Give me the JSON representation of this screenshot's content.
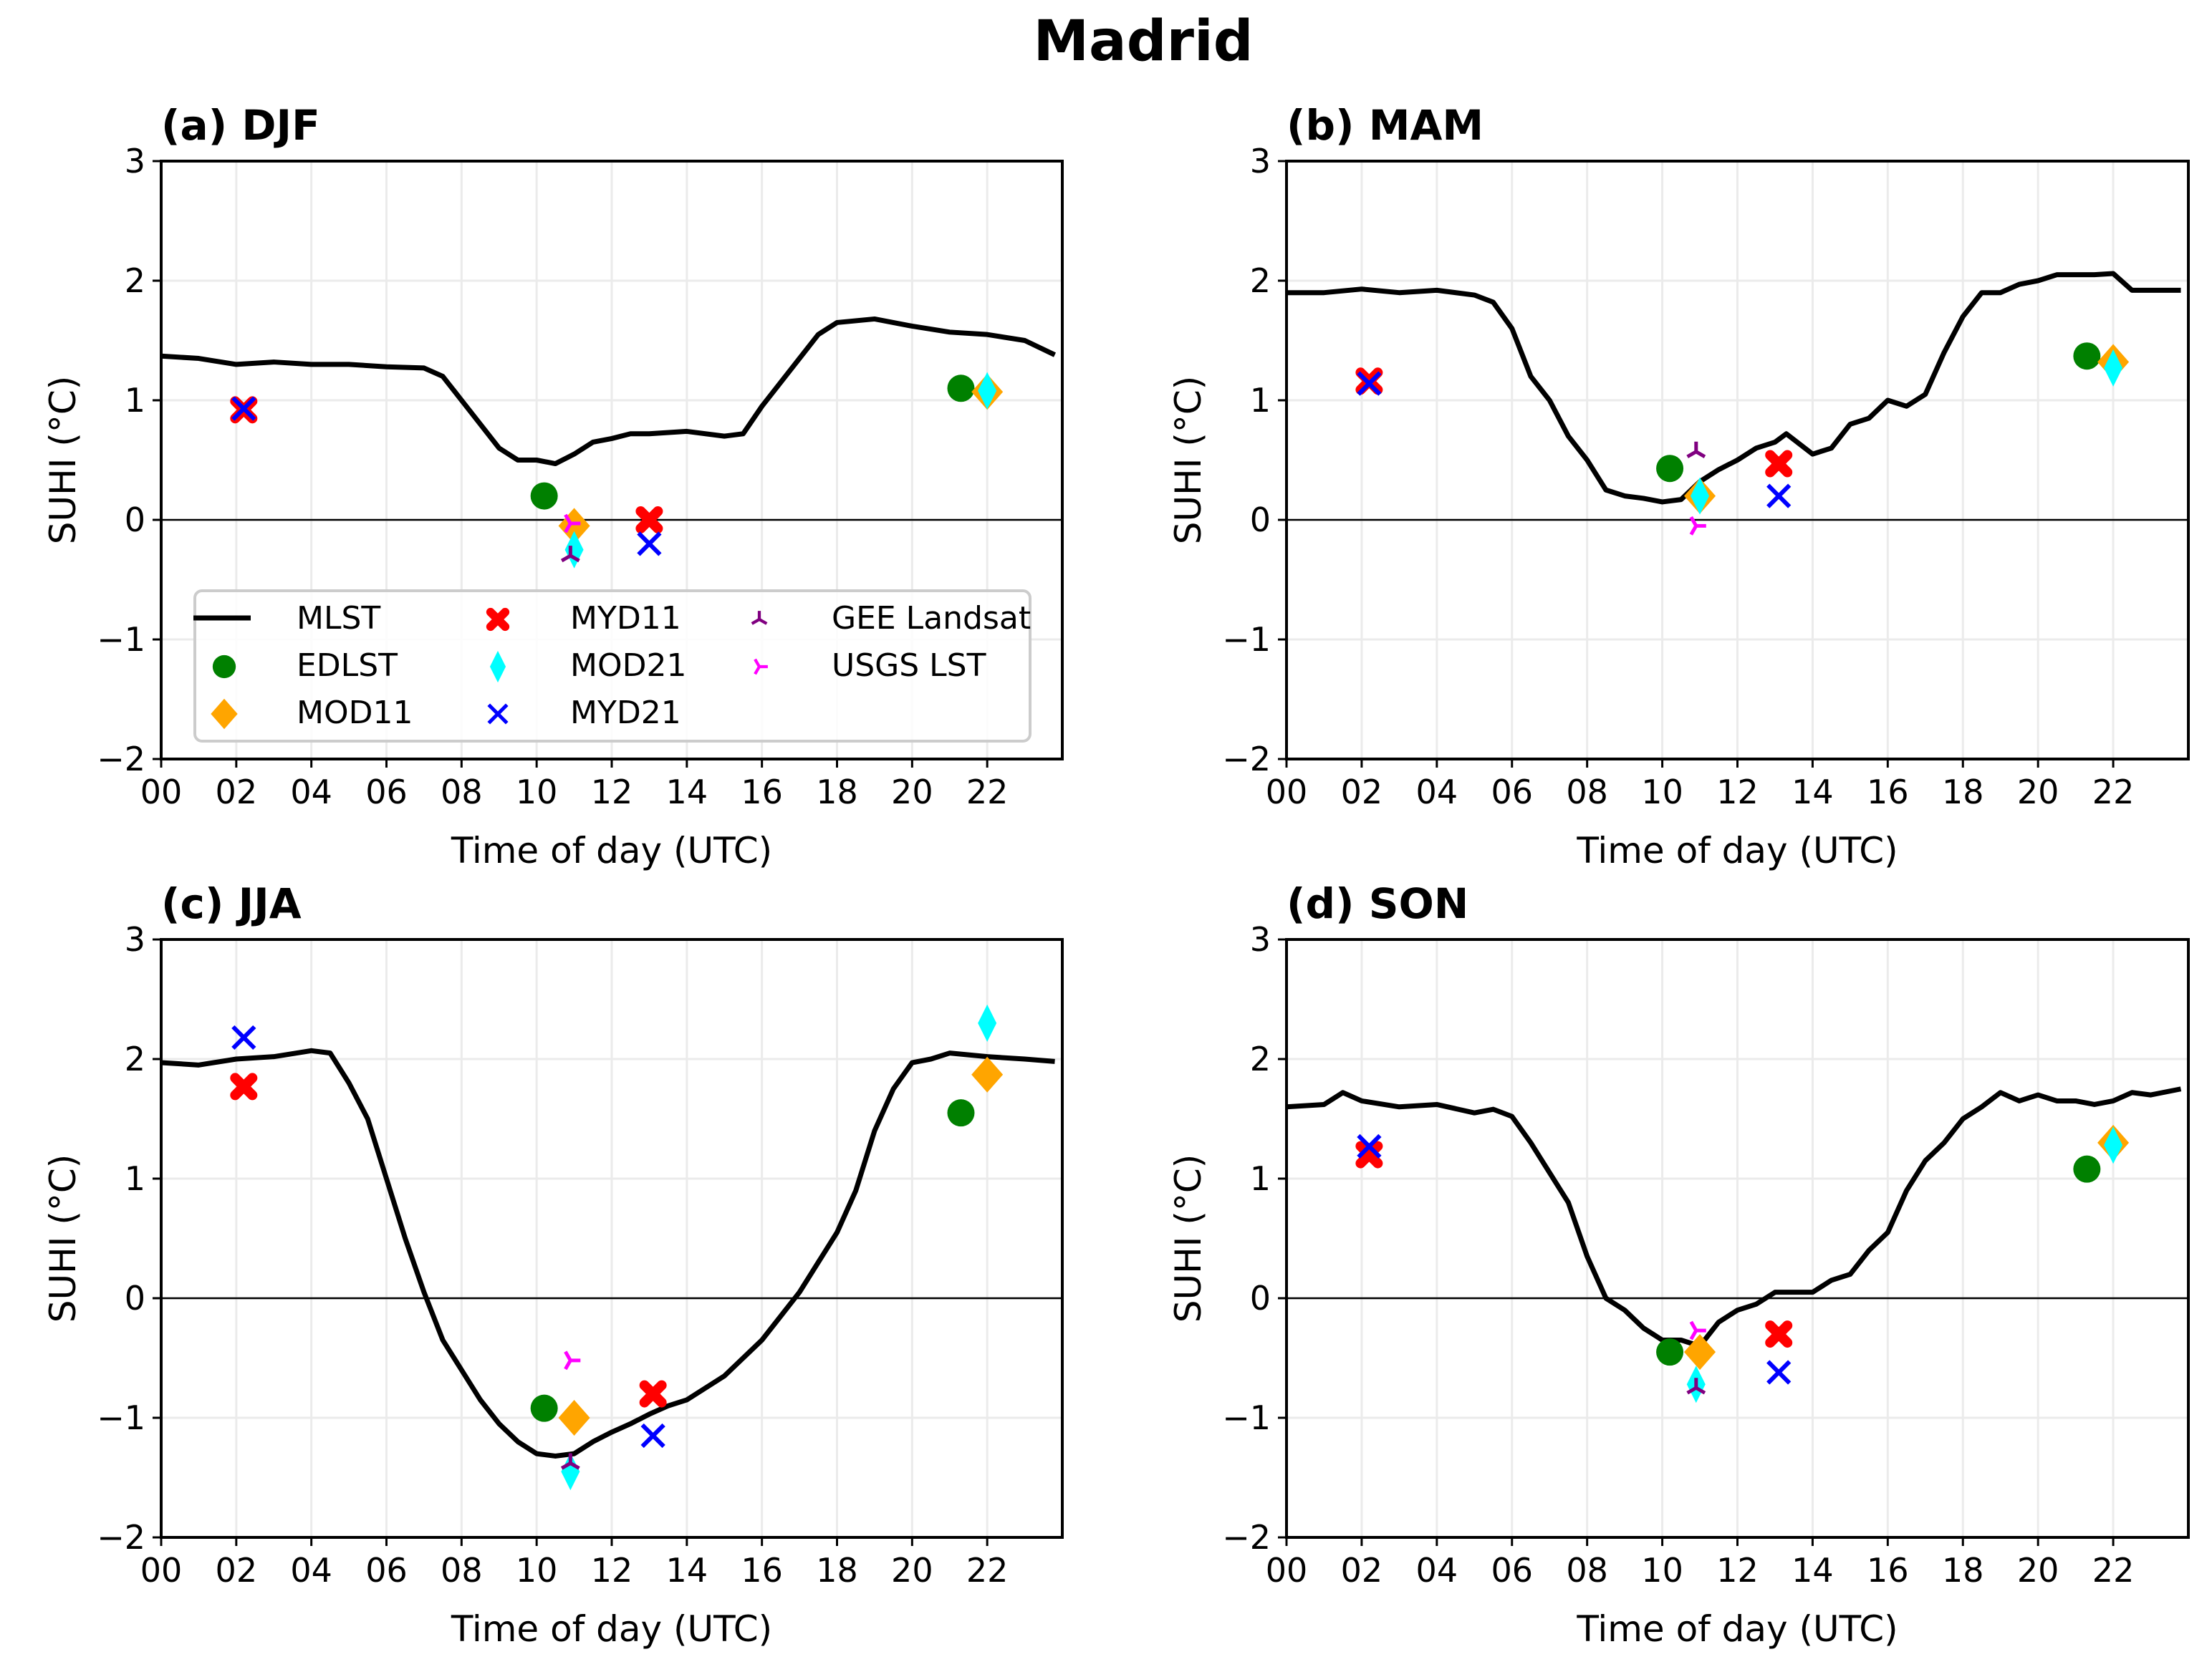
{
  "title": "Madrid",
  "chart_data": {
    "type": "line",
    "title": "Madrid",
    "xlabel": "Time of day (UTC)",
    "ylabel": "SUHI ($^\\circ$C)",
    "ylabel_display": "SUHI (°C)",
    "xlim": [
      0,
      24
    ],
    "ylim": [
      -2,
      3
    ],
    "xticks": [
      "00",
      "02",
      "04",
      "06",
      "08",
      "10",
      "12",
      "14",
      "16",
      "18",
      "20",
      "22"
    ],
    "yticks": [
      "−2",
      "−1",
      "0",
      "1",
      "2",
      "3"
    ],
    "grid": true,
    "legend_placement": "lower-center of panel (a)",
    "legend": [
      {
        "name": "MLST",
        "marker": "line",
        "color": "#000000"
      },
      {
        "name": "EDLST",
        "marker": "circle",
        "color": "#008000"
      },
      {
        "name": "MOD11",
        "marker": "diamond",
        "color": "#FFA500"
      },
      {
        "name": "MYD11",
        "marker": "x-filled",
        "color": "#FF0000"
      },
      {
        "name": "MOD21",
        "marker": "thin-diamond",
        "color": "#00FFFF"
      },
      {
        "name": "MYD21",
        "marker": "x",
        "color": "#0000FF"
      },
      {
        "name": "GEE Landsat",
        "marker": "tri-up",
        "color": "#800080"
      },
      {
        "name": "USGS LST",
        "marker": "tri-right",
        "color": "#FF00FF"
      }
    ],
    "panels": [
      {
        "title": "(a) DJF",
        "mlst": {
          "x": [
            0,
            1,
            2,
            3,
            4,
            5,
            6,
            7,
            7.5,
            8,
            8.5,
            9,
            9.5,
            10,
            10.5,
            11,
            11.5,
            12,
            12.5,
            13,
            14,
            15,
            15.5,
            16,
            17,
            17.5,
            18,
            19,
            20,
            21,
            22,
            23,
            23.8
          ],
          "y": [
            1.37,
            1.35,
            1.3,
            1.32,
            1.3,
            1.3,
            1.28,
            1.27,
            1.2,
            1.0,
            0.8,
            0.6,
            0.5,
            0.5,
            0.47,
            0.55,
            0.65,
            0.68,
            0.72,
            0.72,
            0.74,
            0.7,
            0.72,
            0.95,
            1.35,
            1.55,
            1.65,
            1.68,
            1.62,
            1.57,
            1.55,
            1.5,
            1.38
          ]
        },
        "points": {
          "EDLST": [
            [
              10.2,
              0.2
            ],
            [
              21.3,
              1.1
            ]
          ],
          "MOD11": [
            [
              11.0,
              -0.05
            ],
            [
              22.0,
              1.07
            ]
          ],
          "MYD11": [
            [
              2.2,
              0.92
            ],
            [
              13.0,
              0.0
            ]
          ],
          "MOD21": [
            [
              11.0,
              -0.25
            ],
            [
              22.0,
              1.08
            ]
          ],
          "MYD21": [
            [
              2.2,
              0.93
            ],
            [
              13.0,
              -0.2
            ]
          ],
          "GEE Landsat": [
            [
              10.9,
              -0.3
            ]
          ],
          "USGS LST": [
            [
              10.9,
              -0.03
            ]
          ]
        }
      },
      {
        "title": "(b) MAM",
        "mlst": {
          "x": [
            0,
            1,
            2,
            3,
            4,
            5,
            5.5,
            6,
            6.5,
            7,
            7.5,
            8,
            8.5,
            9,
            9.5,
            10,
            10.5,
            11,
            11.5,
            12,
            12.5,
            13,
            13.3,
            14,
            14.5,
            15,
            15.5,
            16,
            16.5,
            17,
            17.5,
            18,
            18.5,
            19,
            19.5,
            20,
            20.5,
            21,
            21.5,
            22,
            22.5,
            23,
            23.8
          ],
          "y": [
            1.9,
            1.9,
            1.93,
            1.9,
            1.92,
            1.88,
            1.82,
            1.6,
            1.2,
            1.0,
            0.7,
            0.5,
            0.25,
            0.2,
            0.18,
            0.15,
            0.17,
            0.32,
            0.42,
            0.5,
            0.6,
            0.65,
            0.72,
            0.55,
            0.6,
            0.8,
            0.85,
            1.0,
            0.95,
            1.05,
            1.4,
            1.7,
            1.9,
            1.9,
            1.97,
            2.0,
            2.05,
            2.05,
            2.05,
            2.06,
            1.92,
            1.92,
            1.92
          ]
        },
        "points": {
          "EDLST": [
            [
              10.2,
              0.43
            ],
            [
              21.3,
              1.37
            ]
          ],
          "MOD11": [
            [
              11.0,
              0.2
            ],
            [
              22.0,
              1.32
            ]
          ],
          "MYD11": [
            [
              2.2,
              1.16
            ],
            [
              13.1,
              0.47
            ]
          ],
          "MOD21": [
            [
              11.0,
              0.2
            ],
            [
              22.0,
              1.27
            ]
          ],
          "MYD21": [
            [
              2.2,
              1.14
            ],
            [
              13.1,
              0.2
            ]
          ],
          "GEE Landsat": [
            [
              10.9,
              0.57
            ]
          ],
          "USGS LST": [
            [
              10.9,
              -0.05
            ]
          ]
        }
      },
      {
        "title": "(c) JJA",
        "mlst": {
          "x": [
            0,
            1,
            2,
            3,
            4,
            4.5,
            5,
            5.5,
            6,
            6.5,
            7,
            7.5,
            8,
            8.5,
            9,
            9.5,
            10,
            10.5,
            11,
            11.5,
            12,
            12.5,
            13,
            13.5,
            14,
            15,
            16,
            16.5,
            17,
            17.5,
            18,
            18.5,
            19,
            19.5,
            20,
            20.5,
            21,
            22,
            23,
            23.8
          ],
          "y": [
            1.97,
            1.95,
            2.0,
            2.02,
            2.07,
            2.05,
            1.8,
            1.5,
            1.0,
            0.5,
            0.05,
            -0.35,
            -0.6,
            -0.85,
            -1.05,
            -1.2,
            -1.3,
            -1.32,
            -1.3,
            -1.2,
            -1.12,
            -1.05,
            -0.97,
            -0.9,
            -0.85,
            -0.65,
            -0.35,
            -0.15,
            0.05,
            0.3,
            0.55,
            0.9,
            1.4,
            1.75,
            1.97,
            2.0,
            2.05,
            2.02,
            2.0,
            1.98
          ]
        },
        "points": {
          "EDLST": [
            [
              10.2,
              -0.92
            ],
            [
              21.3,
              1.55
            ]
          ],
          "MOD11": [
            [
              11.0,
              -1.0
            ],
            [
              22.0,
              1.87
            ]
          ],
          "MYD11": [
            [
              2.2,
              1.77
            ],
            [
              13.1,
              -0.8
            ]
          ],
          "MOD21": [
            [
              10.9,
              -1.45
            ],
            [
              22.0,
              2.3
            ]
          ],
          "MYD21": [
            [
              2.2,
              2.18
            ],
            [
              13.1,
              -1.15
            ]
          ],
          "GEE Landsat": [
            [
              10.9,
              -1.38
            ]
          ],
          "USGS LST": [
            [
              10.9,
              -0.52
            ]
          ]
        }
      },
      {
        "title": "(d) SON",
        "mlst": {
          "x": [
            0,
            1,
            1.5,
            2,
            3,
            4,
            5,
            5.5,
            6,
            6.5,
            7,
            7.5,
            8,
            8.5,
            9,
            9.5,
            10,
            10.5,
            11,
            11.5,
            12,
            12.5,
            13,
            13.5,
            14,
            14.5,
            15,
            15.5,
            16,
            16.5,
            17,
            17.5,
            18,
            18.5,
            19,
            19.5,
            20,
            20.5,
            21,
            21.5,
            22,
            22.5,
            23,
            23.8
          ],
          "y": [
            1.6,
            1.62,
            1.72,
            1.65,
            1.6,
            1.62,
            1.55,
            1.58,
            1.52,
            1.3,
            1.05,
            0.8,
            0.35,
            0.0,
            -0.1,
            -0.25,
            -0.35,
            -0.35,
            -0.4,
            -0.2,
            -0.1,
            -0.05,
            0.05,
            0.05,
            0.05,
            0.15,
            0.2,
            0.4,
            0.55,
            0.9,
            1.15,
            1.3,
            1.5,
            1.6,
            1.72,
            1.65,
            1.7,
            1.65,
            1.65,
            1.62,
            1.65,
            1.72,
            1.7,
            1.75
          ]
        },
        "points": {
          "EDLST": [
            [
              10.2,
              -0.45
            ],
            [
              21.3,
              1.08
            ]
          ],
          "MOD11": [
            [
              11.0,
              -0.45
            ],
            [
              22.0,
              1.3
            ]
          ],
          "MYD11": [
            [
              2.2,
              1.2
            ],
            [
              13.1,
              -0.3
            ]
          ],
          "MOD21": [
            [
              10.9,
              -0.72
            ],
            [
              22.0,
              1.28
            ]
          ],
          "MYD21": [
            [
              2.2,
              1.27
            ],
            [
              13.1,
              -0.62
            ]
          ],
          "GEE Landsat": [
            [
              10.9,
              -0.75
            ]
          ],
          "USGS LST": [
            [
              10.9,
              -0.27
            ]
          ]
        }
      }
    ]
  }
}
